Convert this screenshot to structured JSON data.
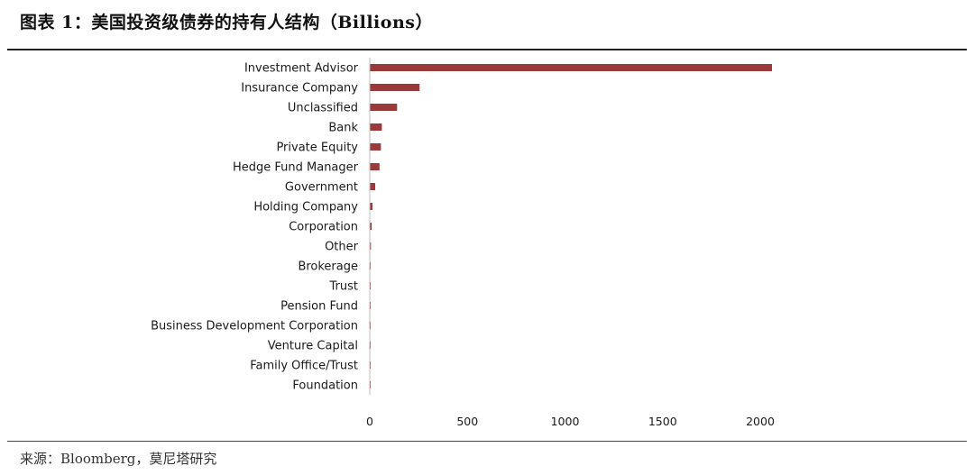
{
  "figure": {
    "title": "图表 1：美国投资级债券的持有人结构（Billions）",
    "source": "来源：Bloomberg，莫尼塔研究"
  },
  "chart_data": {
    "type": "bar",
    "orientation": "horizontal",
    "categories": [
      "Investment Advisor",
      "Insurance Company",
      "Unclassified",
      "Bank",
      "Private Equity",
      "Hedge Fund Manager",
      "Government",
      "Holding Company",
      "Corporation",
      "Other",
      "Brokerage",
      "Trust",
      "Pension Fund",
      "Business Development Corporation",
      "Venture Capital",
      "Family Office/Trust",
      "Foundation"
    ],
    "values": [
      2060,
      255,
      140,
      62,
      57,
      50,
      28,
      14,
      10,
      6,
      3,
      3,
      2,
      2,
      1,
      1,
      1
    ],
    "xlim": [
      0,
      2000
    ],
    "xticks": [
      "0",
      "500",
      "1000",
      "1500",
      "2000"
    ],
    "bar_color": "#9a3a3a",
    "grid": false,
    "legend": "none"
  }
}
